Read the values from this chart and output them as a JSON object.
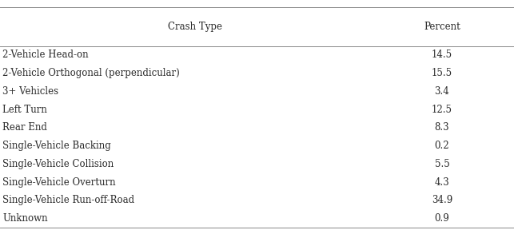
{
  "col1_header": "Crash Type",
  "col2_header": "Percent",
  "rows": [
    [
      "2-Vehicle Head-on",
      "14.5"
    ],
    [
      "2-Vehicle Orthogonal (perpendicular)",
      "15.5"
    ],
    [
      "3+ Vehicles",
      "3.4"
    ],
    [
      "Left Turn",
      "12.5"
    ],
    [
      "Rear End",
      "8.3"
    ],
    [
      "Single-Vehicle Backing",
      "0.2"
    ],
    [
      "Single-Vehicle Collision",
      "5.5"
    ],
    [
      "Single-Vehicle Overturn",
      "4.3"
    ],
    [
      "Single-Vehicle Run-off-Road",
      "34.9"
    ],
    [
      "Unknown",
      "0.9"
    ]
  ],
  "background_color": "#ffffff",
  "line_color": "#888888",
  "text_color": "#2a2a2a",
  "font_size": 8.5,
  "header_font_size": 8.5,
  "figsize": [
    6.43,
    2.88
  ],
  "dpi": 100
}
